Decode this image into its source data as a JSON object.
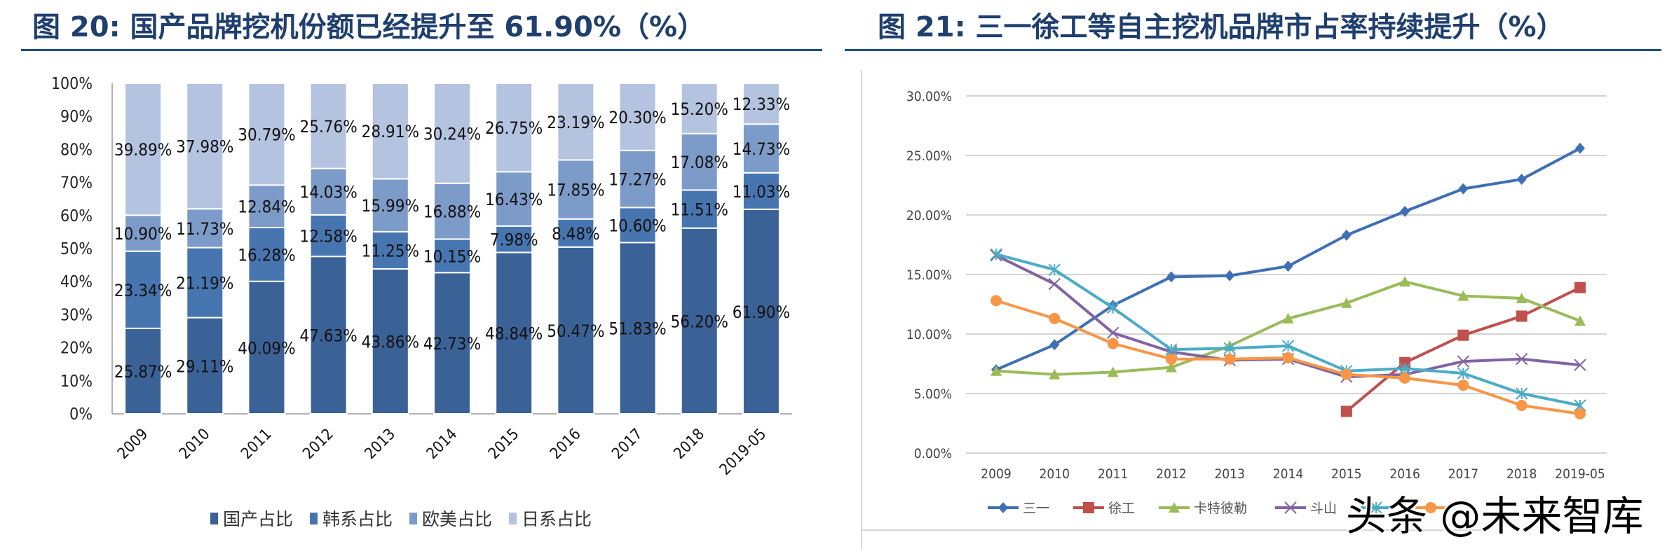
{
  "charts_titles": {
    "left": "图 20: 国产品牌挖机份额已经提升至 61.90%（%）",
    "right": "图 21: 三一徐工等自主挖机品牌市占率持续提升（%）"
  },
  "watermark": "头条 @未来智库",
  "chart_data": [
    {
      "type": "bar",
      "stacked": true,
      "title": "图 20: 国产品牌挖机份额已经提升至 61.90%（%）",
      "categories": [
        "2009",
        "2010",
        "2011",
        "2012",
        "2013",
        "2014",
        "2015",
        "2016",
        "2017",
        "2018",
        "2019-05"
      ],
      "ylim": [
        0,
        100
      ],
      "yticks": [
        "0%",
        "10%",
        "20%",
        "30%",
        "40%",
        "50%",
        "60%",
        "70%",
        "80%",
        "90%",
        "100%"
      ],
      "legend_position": "bottom",
      "series": [
        {
          "name": "国产占比",
          "color": "#3b6297",
          "values": [
            25.87,
            29.11,
            40.09,
            47.63,
            43.86,
            42.73,
            48.84,
            50.47,
            51.83,
            56.2,
            61.9
          ],
          "labels": [
            "25.87%",
            "29.11%",
            "40.09%",
            "47.63%",
            "43.86%",
            "42.73%",
            "48.84%",
            "50.47%",
            "51.83%",
            "56.20%",
            "61.90%"
          ]
        },
        {
          "name": "韩系占比",
          "color": "#4675b0",
          "values": [
            23.34,
            21.19,
            16.28,
            12.58,
            11.25,
            10.15,
            7.98,
            8.48,
            10.6,
            11.51,
            11.03
          ],
          "labels": [
            "23.34%",
            "21.19%",
            "16.28%",
            "12.58%",
            "11.25%",
            "10.15%",
            "7.98%",
            "8.48%",
            "10.60%",
            "11.51%",
            "11.03%"
          ]
        },
        {
          "name": "欧美占比",
          "color": "#7d9bc9",
          "values": [
            10.9,
            11.73,
            12.84,
            14.03,
            15.99,
            16.88,
            16.43,
            17.85,
            17.27,
            17.08,
            14.73
          ],
          "labels": [
            "10.90%",
            "11.73%",
            "12.84%",
            "14.03%",
            "15.99%",
            "16.88%",
            "16.43%",
            "17.85%",
            "17.27%",
            "17.08%",
            "14.73%"
          ]
        },
        {
          "name": "日系占比",
          "color": "#b4c3df",
          "values": [
            39.89,
            37.98,
            30.79,
            25.76,
            28.91,
            30.24,
            26.75,
            23.19,
            20.3,
            15.2,
            12.33
          ],
          "labels": [
            "39.89%",
            "37.98%",
            "30.79%",
            "25.76%",
            "28.91%",
            "30.24%",
            "26.75%",
            "23.19%",
            "20.30%",
            "15.20%",
            "12.33%"
          ]
        }
      ]
    },
    {
      "type": "line",
      "title": "图 21: 三一徐工等自主挖机品牌市占率持续提升（%）",
      "categories": [
        "2009",
        "2010",
        "2011",
        "2012",
        "2013",
        "2014",
        "2015",
        "2016",
        "2017",
        "2018",
        "2019-05"
      ],
      "ylim": [
        0,
        30
      ],
      "yticks": [
        "0.00%",
        "5.00%",
        "10.00%",
        "15.00%",
        "20.00%",
        "25.00%",
        "30.00%"
      ],
      "grid": true,
      "legend_position": "bottom",
      "series": [
        {
          "name": "三一",
          "color": "#3f6fb5",
          "marker": "diamond",
          "values": [
            7.0,
            9.1,
            12.4,
            14.8,
            14.9,
            15.7,
            18.3,
            20.3,
            22.2,
            23.0,
            25.6
          ]
        },
        {
          "name": "徐工",
          "color": "#c0504d",
          "marker": "square",
          "values": [
            null,
            null,
            null,
            null,
            null,
            null,
            3.5,
            7.6,
            9.9,
            11.5,
            13.9
          ]
        },
        {
          "name": "卡特彼勒",
          "color": "#9bbb59",
          "marker": "triangle",
          "values": [
            6.9,
            6.6,
            6.8,
            7.2,
            9.0,
            11.3,
            12.6,
            14.4,
            13.2,
            13.0,
            11.1
          ]
        },
        {
          "name": "斗山",
          "color": "#8064a2",
          "marker": "x",
          "values": [
            16.6,
            14.2,
            10.1,
            8.5,
            7.8,
            7.9,
            6.4,
            6.6,
            7.7,
            7.9,
            7.4
          ]
        },
        {
          "name": "",
          "color": "#4bacc6",
          "marker": "star",
          "values": [
            16.7,
            15.4,
            12.2,
            8.7,
            8.8,
            9.0,
            6.9,
            7.1,
            6.7,
            5.0,
            4.0
          ]
        },
        {
          "name": "",
          "color": "#f79646",
          "marker": "circle",
          "values": [
            12.8,
            11.3,
            9.2,
            7.9,
            7.9,
            8.0,
            6.6,
            6.3,
            5.7,
            4.0,
            3.3
          ]
        }
      ]
    }
  ]
}
